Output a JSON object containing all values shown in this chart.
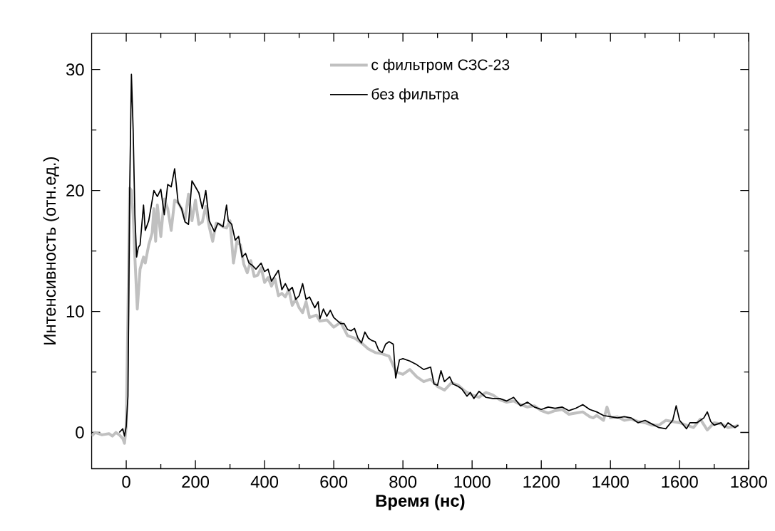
{
  "chart_data": {
    "type": "line",
    "xlabel": "**Время (нс)**",
    "ylabel": "Интенсивность (отн.ед.)",
    "xlim": [
      -100,
      1800
    ],
    "ylim": [
      -3,
      33
    ],
    "xticks": [
      0,
      200,
      400,
      600,
      800,
      1000,
      1200,
      1400,
      1600,
      1800
    ],
    "yticks": [
      0,
      10,
      20,
      30
    ],
    "legend": "top",
    "grid": false,
    "marker": "none",
    "line_style": "solid",
    "series": [
      {
        "name": "с фильтром СЗС-23",
        "color": "#c0c0c0",
        "x": [
          -100,
          -90,
          -70,
          -50,
          -40,
          -30,
          -20,
          -10,
          -5,
          0,
          5,
          10,
          15,
          20,
          25,
          32,
          40,
          50,
          55,
          65,
          75,
          80,
          85,
          90,
          100,
          110,
          120,
          130,
          140,
          150,
          160,
          170,
          180,
          190,
          200,
          210,
          220,
          230,
          240,
          250,
          260,
          270,
          280,
          290,
          300,
          310,
          320,
          330,
          340,
          350,
          360,
          370,
          380,
          390,
          400,
          410,
          420,
          430,
          440,
          450,
          460,
          470,
          480,
          490,
          500,
          510,
          520,
          530,
          540,
          550,
          560,
          580,
          600,
          620,
          640,
          660,
          680,
          700,
          720,
          740,
          760,
          780,
          800,
          820,
          840,
          860,
          880,
          900,
          920,
          940,
          960,
          980,
          1000,
          1020,
          1040,
          1060,
          1080,
          1100,
          1120,
          1140,
          1160,
          1180,
          1200,
          1220,
          1240,
          1260,
          1280,
          1300,
          1320,
          1340,
          1350,
          1360,
          1380,
          1390,
          1400,
          1420,
          1440,
          1460,
          1480,
          1500,
          1520,
          1540,
          1560,
          1580,
          1600,
          1620,
          1640,
          1660,
          1680,
          1700,
          1720,
          1740,
          1760,
          1770
        ],
        "values": [
          -0.3,
          0,
          -0.2,
          -0.1,
          -0.3,
          0,
          -0.2,
          -0.5,
          -0.9,
          0.5,
          10,
          20.2,
          20,
          18,
          14.5,
          10.2,
          13.5,
          14.5,
          14,
          15.5,
          16.5,
          18.5,
          15.8,
          18.8,
          16.2,
          19.3,
          18.5,
          16.7,
          19.2,
          19,
          18.5,
          17.6,
          19.7,
          17.5,
          19.2,
          17.2,
          17.4,
          18.7,
          17,
          15.8,
          17.3,
          17.2,
          17,
          16.9,
          17.5,
          14,
          15.8,
          15.5,
          13.9,
          13.2,
          14.2,
          12.9,
          13,
          13.6,
          12.4,
          12.8,
          12.1,
          12.7,
          11.3,
          11.5,
          11.2,
          11.8,
          10.5,
          11,
          10.3,
          9.9,
          10.8,
          9.5,
          9.6,
          9.7,
          9.2,
          9.3,
          8.7,
          9.1,
          8,
          7.8,
          7.4,
          6.9,
          6.6,
          6.5,
          6.3,
          5,
          4.8,
          5.2,
          4.6,
          4.2,
          4.4,
          3.8,
          3.5,
          4.1,
          3.9,
          3.4,
          3.1,
          2.9,
          3.3,
          3.1,
          2.7,
          2.5,
          2.6,
          2.3,
          2.1,
          2.2,
          1.8,
          1.6,
          1.8,
          1.9,
          1.5,
          1.6,
          1.7,
          1.3,
          1.2,
          1.4,
          1,
          2.1,
          1.2,
          1.3,
          1,
          1.1,
          0.9,
          0.8,
          0.6,
          0.6,
          1,
          0.9,
          0.8,
          0.6,
          0.4,
          1.1,
          0.2,
          0.8,
          0.7,
          0.4,
          0.5,
          0.6
        ]
      },
      {
        "name": "без фильтра",
        "color": "#000000",
        "x": [
          -20,
          -10,
          -5,
          0,
          5,
          10,
          15,
          20,
          25,
          30,
          35,
          40,
          50,
          55,
          65,
          80,
          90,
          100,
          110,
          120,
          130,
          140,
          150,
          160,
          170,
          180,
          190,
          200,
          210,
          220,
          230,
          240,
          255,
          265,
          280,
          290,
          295,
          305,
          315,
          325,
          335,
          345,
          355,
          365,
          375,
          390,
          400,
          410,
          420,
          440,
          450,
          460,
          470,
          480,
          490,
          500,
          510,
          520,
          530,
          545,
          555,
          560,
          570,
          580,
          590,
          600,
          620,
          630,
          640,
          650,
          660,
          670,
          680,
          690,
          700,
          710,
          720,
          730,
          740,
          750,
          760,
          772,
          779,
          790,
          800,
          820,
          840,
          860,
          880,
          890,
          900,
          910,
          920,
          935,
          945,
          960,
          970,
          985,
          995,
          1005,
          1020,
          1040,
          1060,
          1080,
          1100,
          1120,
          1140,
          1160,
          1180,
          1200,
          1220,
          1240,
          1260,
          1280,
          1300,
          1320,
          1340,
          1360,
          1380,
          1400,
          1420,
          1440,
          1460,
          1480,
          1500,
          1520,
          1540,
          1560,
          1580,
          1590,
          1600,
          1620,
          1630,
          1650,
          1670,
          1680,
          1690,
          1700,
          1720,
          1730,
          1740,
          1760,
          1770
        ],
        "values": [
          0,
          0.3,
          -0.3,
          0.5,
          3,
          20,
          29.6,
          25,
          18,
          14.5,
          15.3,
          15.5,
          18.8,
          16.7,
          17.5,
          20,
          19.5,
          20.1,
          18,
          20.5,
          20.3,
          21.8,
          19,
          18.5,
          17.4,
          17.2,
          20.8,
          20.3,
          19.8,
          18.5,
          20,
          17.5,
          16.6,
          17.3,
          17,
          18.8,
          17.5,
          17.2,
          15.9,
          16.2,
          14.5,
          14.8,
          14,
          13.8,
          13.5,
          14,
          13.3,
          13.5,
          12.5,
          13.4,
          11.8,
          12.3,
          11.7,
          12,
          11,
          11.3,
          12.3,
          11,
          11.2,
          10.3,
          10.8,
          9.4,
          10.2,
          9.6,
          10.1,
          9.5,
          9,
          9,
          8.5,
          8.4,
          8.6,
          7.8,
          7.4,
          8.3,
          7.8,
          7.6,
          7.5,
          6.8,
          6.6,
          7.3,
          7.5,
          7.3,
          4.5,
          6,
          6.1,
          5.9,
          5.6,
          5.2,
          5.4,
          4,
          3.9,
          5.1,
          4.2,
          4.6,
          4,
          3.8,
          3.6,
          3,
          3.3,
          2.8,
          3.4,
          2.9,
          2.8,
          2.8,
          2.6,
          2.9,
          2.2,
          2.5,
          2.1,
          1.9,
          2.1,
          2,
          2.1,
          1.8,
          2,
          2.3,
          1.9,
          1.7,
          1.4,
          1.3,
          1.2,
          1.3,
          1.2,
          0.8,
          1,
          0.7,
          0.4,
          0.3,
          1,
          2.2,
          1,
          0.3,
          0.8,
          0.8,
          1.2,
          1.7,
          0.9,
          0.6,
          0.8,
          0.4,
          0.8,
          0.4,
          0.6
        ]
      }
    ]
  }
}
